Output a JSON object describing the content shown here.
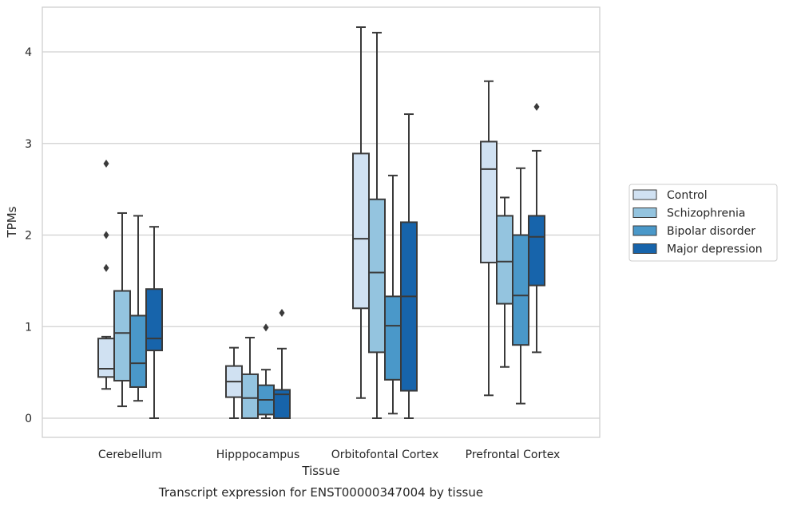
{
  "chart_data": {
    "type": "box",
    "title": "",
    "caption": "Transcript expression for ENST00000347004 by tissue",
    "xlabel": "Tissue",
    "ylabel": "TPMs",
    "ylim": [
      -0.2,
      4.5
    ],
    "yticks": [
      0,
      1,
      2,
      3,
      4
    ],
    "grid": true,
    "legend_position": "right",
    "categories": [
      "Cerebellum",
      "Hipppocampus",
      "Orbitofontal Cortex",
      "Prefrontal Cortex"
    ],
    "series": [
      {
        "name": "Control",
        "color": "#d0e1f2",
        "boxes": [
          {
            "whislo": 0.32,
            "q1": 0.45,
            "med": 0.54,
            "q3": 0.87,
            "whishi": 0.89,
            "fliers": [
              1.64,
              2.0,
              2.78
            ]
          },
          {
            "whislo": 0.0,
            "q1": 0.23,
            "med": 0.4,
            "q3": 0.57,
            "whishi": 0.77,
            "fliers": []
          },
          {
            "whislo": 0.22,
            "q1": 1.2,
            "med": 1.96,
            "q3": 2.89,
            "whishi": 4.27,
            "fliers": []
          },
          {
            "whislo": 0.25,
            "q1": 1.7,
            "med": 2.72,
            "q3": 3.02,
            "whishi": 3.68,
            "fliers": []
          }
        ]
      },
      {
        "name": "Schizophrenia",
        "color": "#94c4df",
        "boxes": [
          {
            "whislo": 0.13,
            "q1": 0.41,
            "med": 0.93,
            "q3": 1.39,
            "whishi": 2.24,
            "fliers": []
          },
          {
            "whislo": 0.0,
            "q1": 0.0,
            "med": 0.22,
            "q3": 0.48,
            "whishi": 0.88,
            "fliers": []
          },
          {
            "whislo": 0.0,
            "q1": 0.72,
            "med": 1.59,
            "q3": 2.39,
            "whishi": 4.21,
            "fliers": []
          },
          {
            "whislo": 0.56,
            "q1": 1.25,
            "med": 1.71,
            "q3": 2.21,
            "whishi": 2.41,
            "fliers": []
          }
        ]
      },
      {
        "name": "Bipolar disorder",
        "color": "#4a98c9",
        "boxes": [
          {
            "whislo": 0.19,
            "q1": 0.34,
            "med": 0.6,
            "q3": 1.12,
            "whishi": 2.21,
            "fliers": []
          },
          {
            "whislo": 0.0,
            "q1": 0.04,
            "med": 0.2,
            "q3": 0.36,
            "whishi": 0.53,
            "fliers": [
              0.99
            ]
          },
          {
            "whislo": 0.05,
            "q1": 0.42,
            "med": 1.01,
            "q3": 1.33,
            "whishi": 2.65,
            "fliers": []
          },
          {
            "whislo": 0.16,
            "q1": 0.8,
            "med": 1.34,
            "q3": 2.0,
            "whishi": 2.73,
            "fliers": []
          }
        ]
      },
      {
        "name": "Major depression",
        "color": "#1764ab",
        "boxes": [
          {
            "whislo": 0.0,
            "q1": 0.74,
            "med": 0.87,
            "q3": 1.41,
            "whishi": 2.09,
            "fliers": []
          },
          {
            "whislo": 0.0,
            "q1": 0.0,
            "med": 0.26,
            "q3": 0.31,
            "whishi": 0.76,
            "fliers": [
              1.15
            ]
          },
          {
            "whislo": 0.0,
            "q1": 0.3,
            "med": 1.33,
            "q3": 2.14,
            "whishi": 3.32,
            "fliers": []
          },
          {
            "whislo": 0.72,
            "q1": 1.45,
            "med": 1.98,
            "q3": 2.21,
            "whishi": 2.92,
            "fliers": [
              3.4
            ]
          }
        ]
      }
    ]
  }
}
